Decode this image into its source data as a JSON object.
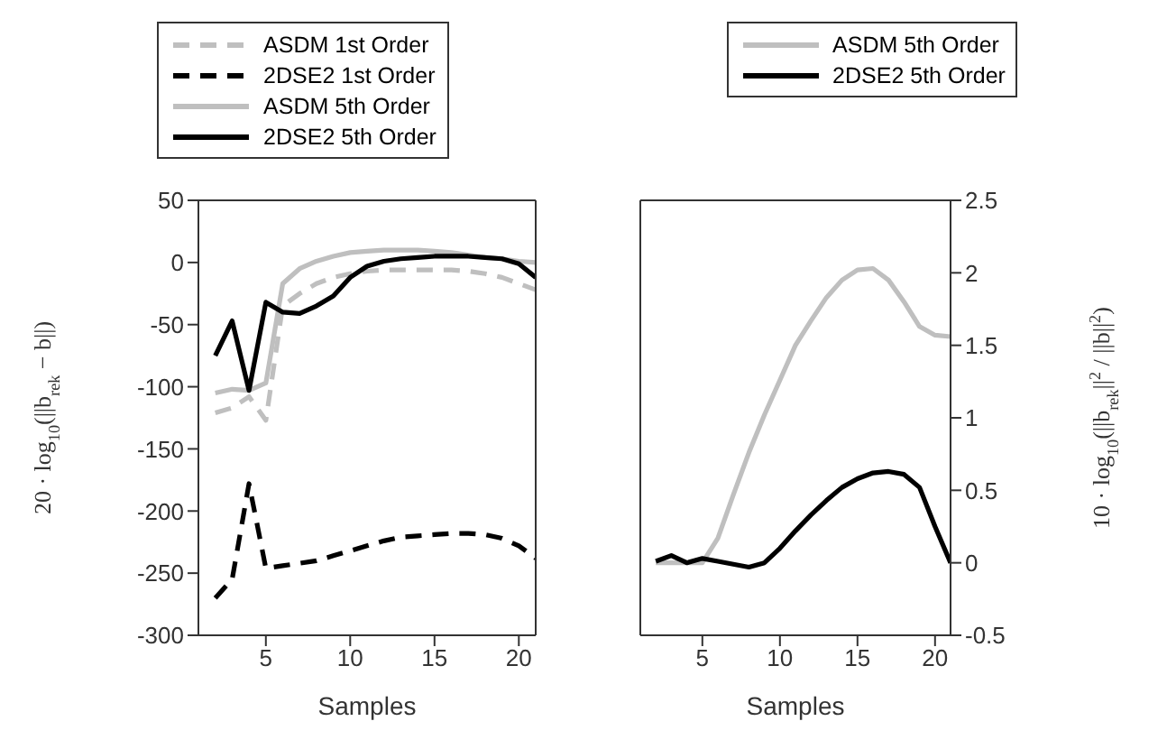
{
  "chart_data": [
    {
      "type": "line",
      "xlabel": "Samples",
      "ylabel": "20 · log$_{10}$(||b$_{rek}$ − b||)",
      "x": [
        2,
        3,
        4,
        5,
        6,
        7,
        8,
        9,
        10,
        11,
        12,
        13,
        14,
        15,
        16,
        17,
        18,
        19,
        20,
        21
      ],
      "xlim": [
        1,
        21
      ],
      "xticks": [
        5,
        10,
        15,
        20
      ],
      "ylim": [
        -300,
        50
      ],
      "yticks": [
        -300,
        -250,
        -200,
        -150,
        -100,
        -50,
        0,
        50
      ],
      "legend": "top",
      "grid": false,
      "series": [
        {
          "name": "ASDM 1st Order",
          "color": "#bfbfbf",
          "line_style": "dashed",
          "values": [
            -121,
            -117,
            -108,
            -127,
            -35,
            -25,
            -17,
            -12,
            -9,
            -7,
            -6,
            -6,
            -6,
            -6,
            -6,
            -7,
            -9,
            -12,
            -17,
            -22
          ]
        },
        {
          "name": "2DSE2 1st Order",
          "color": "#000000",
          "line_style": "dashed",
          "values": [
            -270,
            -255,
            -178,
            -246,
            -244,
            -242,
            -240,
            -236,
            -232,
            -228,
            -224,
            -221,
            -220,
            -219,
            -218,
            -218,
            -219,
            -222,
            -228,
            -238
          ]
        },
        {
          "name": "ASDM 5th Order",
          "color": "#bfbfbf",
          "line_style": "solid",
          "values": [
            -105,
            -102,
            -103,
            -97,
            -17,
            -5,
            1,
            5,
            8,
            9,
            10,
            10,
            10,
            9,
            8,
            6,
            4,
            3,
            1,
            0
          ]
        },
        {
          "name": "2DSE2 5th Order",
          "color": "#000000",
          "line_style": "solid",
          "values": [
            -75,
            -47,
            -103,
            -32,
            -40,
            -41,
            -35,
            -27,
            -12,
            -3,
            1,
            3,
            4,
            5,
            5,
            5,
            4,
            3,
            -1,
            -12
          ]
        }
      ]
    },
    {
      "type": "line",
      "xlabel": "Samples",
      "ylabel": "10 · log$_{10}$(||b$_{rek}$||$^{2}$ / ||b||$^{2}$)",
      "x": [
        2,
        3,
        4,
        5,
        6,
        7,
        8,
        9,
        10,
        11,
        12,
        13,
        14,
        15,
        16,
        17,
        18,
        19,
        20,
        21
      ],
      "xlim": [
        1,
        21
      ],
      "xticks": [
        5,
        10,
        15,
        20
      ],
      "ylim": [
        -0.5,
        2.5
      ],
      "yticks": [
        -0.5,
        0,
        0.5,
        1,
        1.5,
        2,
        2.5
      ],
      "legend": "top",
      "grid": false,
      "series": [
        {
          "name": "ASDM 5th Order",
          "color": "#bfbfbf",
          "line_style": "solid",
          "values": [
            0,
            0,
            0,
            0,
            0.17,
            0.47,
            0.76,
            1.02,
            1.26,
            1.5,
            1.67,
            1.83,
            1.95,
            2.02,
            2.03,
            1.95,
            1.8,
            1.63,
            1.57,
            1.56
          ]
        },
        {
          "name": "2DSE2 5th Order",
          "color": "#000000",
          "line_style": "solid",
          "values": [
            0.01,
            0.05,
            0,
            0.03,
            0.01,
            -0.01,
            -0.03,
            0,
            0.1,
            0.22,
            0.33,
            0.43,
            0.52,
            0.58,
            0.62,
            0.63,
            0.61,
            0.52,
            0.25,
            0
          ]
        }
      ]
    }
  ]
}
